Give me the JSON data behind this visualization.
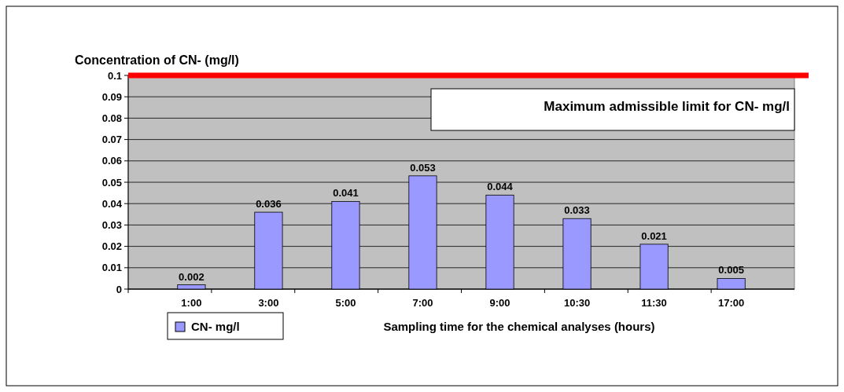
{
  "chart_data": {
    "type": "bar",
    "title": "Concentration of CN- (mg/l)",
    "xlabel": "Sampling time for the chemical analyses  (hours)",
    "categories": [
      "1:00",
      "3:00",
      "5:00",
      "7:00",
      "9:00",
      "10:30",
      "11:30",
      "17:00"
    ],
    "series": [
      {
        "name": "CN- mg/l",
        "color": "#9999ff",
        "values": [
          0.002,
          0.036,
          0.041,
          0.053,
          0.044,
          0.033,
          0.021,
          0.005
        ]
      }
    ],
    "ylim": [
      0,
      0.1
    ],
    "yticks": [
      0,
      0.01,
      0.02,
      0.03,
      0.04,
      0.05,
      0.06,
      0.07,
      0.08,
      0.09,
      0.1
    ],
    "ref_lines": [
      {
        "axis": "y",
        "value": 0.1,
        "label": "Maximum admissible limit for CN- mg/l",
        "color": "#ff0000"
      }
    ],
    "grid": "y",
    "legend": "bottom left",
    "data_labels": true
  }
}
